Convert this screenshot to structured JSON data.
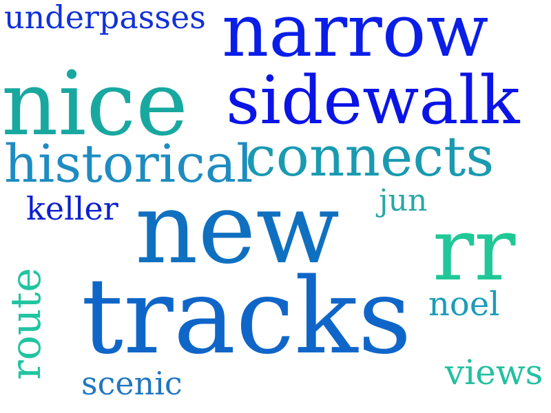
{
  "word_cloud": {
    "background": "#ffffff",
    "words": [
      {
        "key": "underpasses",
        "text": "underpasses",
        "color": "#1230d8"
      },
      {
        "key": "narrow",
        "text": "narrow",
        "color": "#0a1ee8"
      },
      {
        "key": "nice",
        "text": "nice",
        "color": "#18a8a0"
      },
      {
        "key": "sidewalk",
        "text": "sidewalk",
        "color": "#0b14e6"
      },
      {
        "key": "historical",
        "text": "historical",
        "color": "#1e8cc0"
      },
      {
        "key": "connects",
        "text": "connects",
        "color": "#1a9ab0"
      },
      {
        "key": "keller",
        "text": "keller",
        "color": "#0c1fd0"
      },
      {
        "key": "jun",
        "text": "jun",
        "color": "#2aa6a6"
      },
      {
        "key": "new",
        "text": "new",
        "color": "#1070c0"
      },
      {
        "key": "rr",
        "text": "rr",
        "color": "#1fc896"
      },
      {
        "key": "route",
        "text": "route",
        "color": "#20c4a0"
      },
      {
        "key": "tracks",
        "text": "tracks",
        "color": "#1066c8"
      },
      {
        "key": "noel",
        "text": "noel",
        "color": "#1c9cb8"
      },
      {
        "key": "scenic",
        "text": "scenic",
        "color": "#2276c0"
      },
      {
        "key": "views",
        "text": "views",
        "color": "#22c0a0"
      }
    ]
  }
}
